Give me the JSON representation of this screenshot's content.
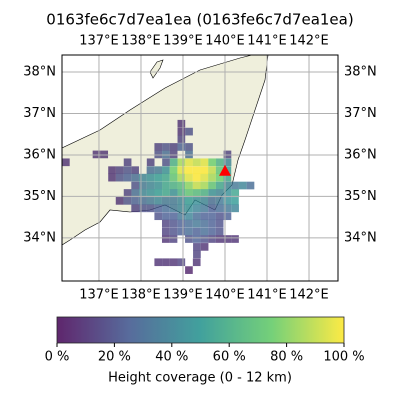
{
  "chart_data": {
    "type": "map-grid",
    "title": "0163fe6c7d7ea1ea (0163fe6c7d7ea1ea)",
    "xlim": [
      136.12,
      142.69
    ],
    "ylim": [
      32.96,
      38.41
    ],
    "xticks": [
      {
        "value": 137,
        "label": "137°E"
      },
      {
        "value": 138,
        "label": "138°E"
      },
      {
        "value": 139,
        "label": "139°E"
      },
      {
        "value": 140,
        "label": "140°E"
      },
      {
        "value": 141,
        "label": "141°E"
      },
      {
        "value": 142,
        "label": "142°E"
      }
    ],
    "yticks": [
      {
        "value": 34,
        "label": "34°N"
      },
      {
        "value": 35,
        "label": "35°N"
      },
      {
        "value": 36,
        "label": "36°N"
      },
      {
        "value": 37,
        "label": "37°N"
      },
      {
        "value": 38,
        "label": "38°N"
      }
    ],
    "grid": true,
    "colormap": "viridis",
    "alpha": 0.75,
    "cell_size": [
      0.183,
      0.185
    ],
    "cells": [
      {
        "lat": 36.66,
        "lon": 138.87,
        "values": [
          10
        ]
      },
      {
        "lat": 36.47,
        "lon": 138.87,
        "values": [
          10,
          20
        ]
      },
      {
        "lat": 36.29,
        "lon": 138.87,
        "values": [
          15
        ]
      },
      {
        "lat": 36.1,
        "lon": 138.32,
        "values": [
          15,
          20,
          15,
          25,
          20
        ]
      },
      {
        "lat": 35.92,
        "lon": 136.85,
        "values": [
          10,
          10
        ]
      },
      {
        "lat": 35.92,
        "lon": 138.32,
        "values": [
          20,
          30,
          15,
          null,
          30,
          null,
          null,
          null,
          null,
          15
        ]
      },
      {
        "lat": 35.73,
        "lon": 136.12,
        "values": [
          10
        ]
      },
      {
        "lat": 35.73,
        "lon": 137.59,
        "values": [
          15,
          null,
          null,
          15,
          null,
          20,
          60,
          85,
          95,
          90,
          95,
          75,
          60,
          40
        ]
      },
      {
        "lat": 35.54,
        "lon": 137.22,
        "values": [
          10,
          15,
          20,
          15,
          null,
          30,
          35,
          45,
          75,
          95,
          100,
          100,
          100,
          90,
          70,
          50
        ]
      },
      {
        "lat": 35.36,
        "lon": 137.22,
        "values": [
          10,
          20,
          25,
          30,
          40,
          45,
          50,
          55,
          70,
          85,
          95,
          100,
          95,
          85,
          75,
          55
        ]
      },
      {
        "lat": 35.17,
        "lon": 137.77,
        "values": [
          20,
          35,
          40,
          45,
          55,
          60,
          65,
          80,
          90,
          85,
          70,
          55,
          40,
          35,
          40,
          30
        ]
      },
      {
        "lat": 34.99,
        "lon": 137.59,
        "values": [
          15,
          30,
          40,
          45,
          50,
          55,
          45,
          60,
          70,
          65,
          60,
          45,
          40,
          45,
          55
        ]
      },
      {
        "lat": 34.8,
        "lon": 137.4,
        "values": [
          10,
          20,
          25,
          30,
          35,
          40,
          35,
          35,
          40,
          50,
          45,
          40,
          30,
          35,
          45,
          50
        ]
      },
      {
        "lat": 34.62,
        "lon": 137.77,
        "values": [
          15,
          20,
          20,
          25,
          30,
          35,
          40,
          45,
          40,
          35,
          25,
          30,
          35,
          40
        ]
      },
      {
        "lat": 34.43,
        "lon": 138.32,
        "values": [
          20,
          25,
          25,
          35,
          40,
          30,
          25,
          25,
          20,
          25
        ]
      },
      {
        "lat": 34.25,
        "lon": 138.5,
        "values": [
          15,
          20,
          25,
          30,
          35,
          30,
          25,
          20
        ]
      },
      {
        "lat": 34.06,
        "lon": 138.5,
        "values": [
          15,
          20,
          25,
          30,
          25,
          30,
          25,
          20
        ]
      },
      {
        "lat": 33.88,
        "lon": 138.5,
        "values": [
          10,
          15,
          null,
          20,
          25,
          20,
          15,
          10,
          10,
          10
        ]
      },
      {
        "lat": 33.69,
        "lon": 139.24,
        "values": [
          15,
          10
        ]
      },
      {
        "lat": 33.51,
        "lon": 139.24,
        "values": [
          15
        ]
      },
      {
        "lat": 33.32,
        "lon": 138.32,
        "values": [
          10,
          10,
          10,
          15,
          null,
          10
        ]
      },
      {
        "lat": 33.13,
        "lon": 139.05,
        "values": [
          5
        ]
      }
    ],
    "marker": {
      "lon": 140.0,
      "lat": 35.62,
      "color": "#ff0000"
    },
    "colorbar": {
      "label": "Height coverage (0 - 12 km)",
      "lim": [
        0,
        100
      ],
      "ticks": [
        {
          "value": 0,
          "label": "0 %"
        },
        {
          "value": 20,
          "label": "20 %"
        },
        {
          "value": 40,
          "label": "40 %"
        },
        {
          "value": 60,
          "label": "60 %"
        },
        {
          "value": 80,
          "label": "80 %"
        },
        {
          "value": 100,
          "label": "100 %"
        }
      ]
    }
  }
}
